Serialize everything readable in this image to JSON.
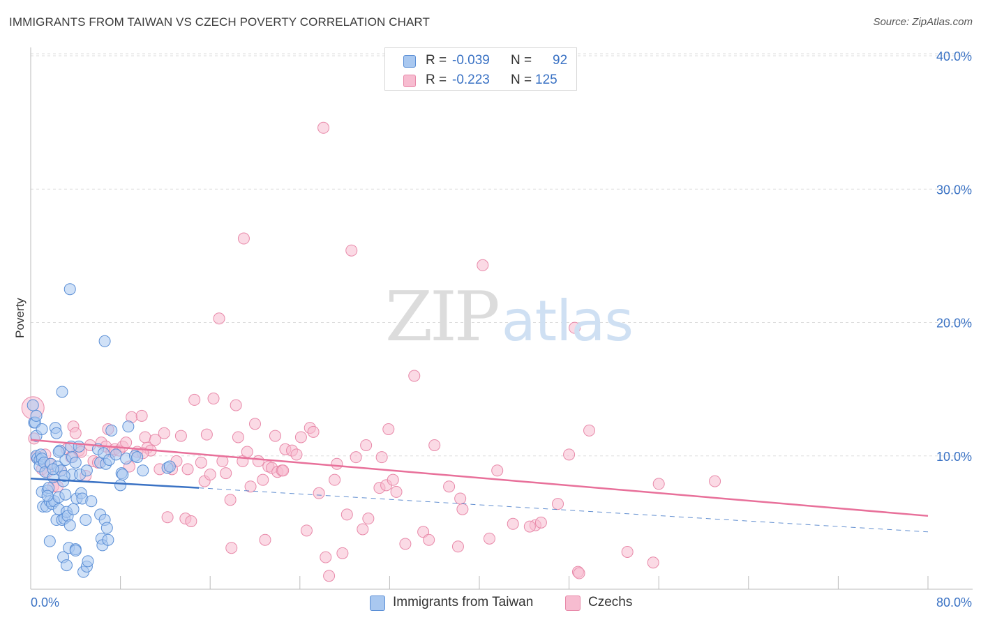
{
  "title": "IMMIGRANTS FROM TAIWAN VS CZECH POVERTY CORRELATION CHART",
  "source": "Source: ZipAtlas.com",
  "watermark": {
    "zip": "ZIP",
    "atlas": "atlas"
  },
  "legend_top": {
    "rows": [
      {
        "r_label": "R =",
        "r_value": "-0.039",
        "n_label": "N =",
        "n_value": "92"
      },
      {
        "r_label": "R =",
        "r_value": "-0.223",
        "n_label": "N =",
        "n_value": "125"
      }
    ]
  },
  "legend_bottom": [
    {
      "label": "Immigrants from Taiwan"
    },
    {
      "label": "Czechs"
    }
  ],
  "colors": {
    "taiwan_fill": "#a9c8f0",
    "taiwan_stroke": "#5b8fd6",
    "taiwan_line": "#3a72c4",
    "czech_fill": "#f7bcd0",
    "czech_stroke": "#e889a9",
    "czech_line": "#e8709a",
    "axis_text": "#3a72c4",
    "grid": "#dddddd"
  },
  "chart_data": {
    "type": "scatter",
    "title": "IMMIGRANTS FROM TAIWAN VS CZECH POVERTY CORRELATION CHART",
    "xlabel": "",
    "ylabel": "Poverty",
    "xlim": [
      0,
      80
    ],
    "ylim": [
      0,
      40
    ],
    "x_tick_labels": [
      {
        "value": 0,
        "label": "0.0%"
      },
      {
        "value": 80,
        "label": "80.0%"
      }
    ],
    "y_tick_labels": [
      {
        "value": 10,
        "label": "10.0%"
      },
      {
        "value": 20,
        "label": "20.0%"
      },
      {
        "value": 30,
        "label": "30.0%"
      },
      {
        "value": 40,
        "label": "40.0%"
      }
    ],
    "x_minor_ticks": [
      8,
      16,
      24,
      32,
      40,
      48,
      56,
      64,
      72,
      80
    ],
    "grid": true,
    "legend_position": "top-center",
    "series": [
      {
        "name": "Immigrants from Taiwan",
        "r": -0.039,
        "n": 92,
        "trend": {
          "x0": 0,
          "y0": 8.3,
          "x1": 15,
          "y1": 7.6,
          "dashed_to_x": 80,
          "dashed_to_y": 4.3
        },
        "points": [
          [
            0.2,
            13.8
          ],
          [
            0.3,
            12.5
          ],
          [
            0.4,
            12.5
          ],
          [
            0.5,
            13.0
          ],
          [
            0.5,
            11.5
          ],
          [
            0.5,
            10.0
          ],
          [
            0.6,
            9.8
          ],
          [
            0.8,
            9.7
          ],
          [
            0.8,
            9.2
          ],
          [
            0.9,
            10.1
          ],
          [
            1.0,
            9.8
          ],
          [
            1.0,
            7.3
          ],
          [
            1.1,
            6.2
          ],
          [
            1.2,
            9.5
          ],
          [
            1.3,
            8.8
          ],
          [
            1.4,
            6.2
          ],
          [
            1.5,
            7.4
          ],
          [
            1.6,
            7.6
          ],
          [
            1.7,
            6.6
          ],
          [
            1.7,
            3.6
          ],
          [
            1.8,
            9.4
          ],
          [
            1.9,
            6.4
          ],
          [
            2.0,
            8.4
          ],
          [
            2.1,
            6.6
          ],
          [
            2.2,
            12.1
          ],
          [
            2.3,
            11.7
          ],
          [
            2.3,
            5.2
          ],
          [
            2.4,
            9.2
          ],
          [
            2.5,
            6.9
          ],
          [
            2.5,
            6.0
          ],
          [
            2.6,
            10.4
          ],
          [
            2.7,
            8.9
          ],
          [
            2.8,
            14.8
          ],
          [
            2.8,
            5.2
          ],
          [
            2.9,
            8.1
          ],
          [
            2.9,
            2.4
          ],
          [
            3.0,
            5.3
          ],
          [
            3.1,
            9.7
          ],
          [
            3.1,
            7.1
          ],
          [
            3.2,
            5.8
          ],
          [
            3.2,
            1.8
          ],
          [
            3.3,
            5.5
          ],
          [
            3.4,
            3.1
          ],
          [
            3.5,
            22.5
          ],
          [
            3.5,
            4.8
          ],
          [
            3.6,
            10.7
          ],
          [
            3.7,
            9.9
          ],
          [
            3.7,
            8.6
          ],
          [
            3.8,
            6.0
          ],
          [
            4.0,
            3.0
          ],
          [
            4.0,
            2.9
          ],
          [
            4.1,
            6.8
          ],
          [
            4.3,
            10.7
          ],
          [
            4.4,
            8.6
          ],
          [
            4.5,
            7.2
          ],
          [
            4.6,
            6.8
          ],
          [
            4.7,
            1.3
          ],
          [
            4.9,
            5.2
          ],
          [
            5.0,
            1.7
          ],
          [
            5.1,
            2.1
          ],
          [
            5.4,
            6.6
          ],
          [
            6.0,
            10.5
          ],
          [
            6.2,
            9.5
          ],
          [
            6.2,
            5.6
          ],
          [
            6.3,
            3.8
          ],
          [
            6.4,
            3.3
          ],
          [
            6.5,
            10.2
          ],
          [
            6.6,
            18.6
          ],
          [
            6.6,
            5.2
          ],
          [
            6.7,
            9.4
          ],
          [
            6.8,
            4.6
          ],
          [
            6.9,
            3.7
          ],
          [
            7.0,
            9.7
          ],
          [
            7.2,
            11.9
          ],
          [
            7.6,
            10.1
          ],
          [
            8.0,
            7.8
          ],
          [
            8.1,
            8.7
          ],
          [
            8.2,
            8.6
          ],
          [
            8.5,
            9.8
          ],
          [
            8.7,
            12.2
          ],
          [
            9.3,
            10.0
          ],
          [
            9.5,
            9.9
          ],
          [
            10.0,
            8.9
          ],
          [
            12.2,
            9.1
          ],
          [
            12.4,
            9.2
          ],
          [
            1.0,
            12.0
          ],
          [
            2.0,
            9.0
          ],
          [
            3.0,
            8.5
          ],
          [
            4.0,
            9.5
          ],
          [
            5.0,
            8.9
          ],
          [
            2.5,
            10.3
          ],
          [
            1.5,
            7.0
          ]
        ]
      },
      {
        "name": "Czechs",
        "r": -0.223,
        "n": 125,
        "trend": {
          "x0": 0,
          "y0": 11.2,
          "x1": 80,
          "y1": 5.5
        },
        "points": [
          [
            0.2,
            13.6
          ],
          [
            0.3,
            11.3
          ],
          [
            0.5,
            9.9
          ],
          [
            1.0,
            9.0
          ],
          [
            1.3,
            10.1
          ],
          [
            1.5,
            8.8
          ],
          [
            1.7,
            9.4
          ],
          [
            2.0,
            7.7
          ],
          [
            2.4,
            7.7
          ],
          [
            2.7,
            8.9
          ],
          [
            3.2,
            10.5
          ],
          [
            3.6,
            9.9
          ],
          [
            3.8,
            12.2
          ],
          [
            4.0,
            11.7
          ],
          [
            4.3,
            10.4
          ],
          [
            4.5,
            10.3
          ],
          [
            4.9,
            8.5
          ],
          [
            5.3,
            10.8
          ],
          [
            5.6,
            9.6
          ],
          [
            6.0,
            9.5
          ],
          [
            6.3,
            11.0
          ],
          [
            6.7,
            10.7
          ],
          [
            6.9,
            12.0
          ],
          [
            7.2,
            10.3
          ],
          [
            7.5,
            10.5
          ],
          [
            7.9,
            10.4
          ],
          [
            8.2,
            10.7
          ],
          [
            8.5,
            11.0
          ],
          [
            8.8,
            9.2
          ],
          [
            9.0,
            12.9
          ],
          [
            9.5,
            10.3
          ],
          [
            9.9,
            13.0
          ],
          [
            10.2,
            11.4
          ],
          [
            10.4,
            10.6
          ],
          [
            10.7,
            10.4
          ],
          [
            11.1,
            11.2
          ],
          [
            11.5,
            9.0
          ],
          [
            11.9,
            11.7
          ],
          [
            12.2,
            5.4
          ],
          [
            12.6,
            9.0
          ],
          [
            13.0,
            9.6
          ],
          [
            13.4,
            11.5
          ],
          [
            13.8,
            5.3
          ],
          [
            14.0,
            9.0
          ],
          [
            14.3,
            5.1
          ],
          [
            14.6,
            14.2
          ],
          [
            15.2,
            9.5
          ],
          [
            15.5,
            8.1
          ],
          [
            15.7,
            11.6
          ],
          [
            16.0,
            8.6
          ],
          [
            16.3,
            14.3
          ],
          [
            16.8,
            20.3
          ],
          [
            17.1,
            9.6
          ],
          [
            17.4,
            8.7
          ],
          [
            17.8,
            6.7
          ],
          [
            17.9,
            3.1
          ],
          [
            18.3,
            13.8
          ],
          [
            18.5,
            11.4
          ],
          [
            18.9,
            9.6
          ],
          [
            19.0,
            26.3
          ],
          [
            19.3,
            10.3
          ],
          [
            19.6,
            7.7
          ],
          [
            20.0,
            12.4
          ],
          [
            20.3,
            9.6
          ],
          [
            20.7,
            8.2
          ],
          [
            20.9,
            3.7
          ],
          [
            21.2,
            9.2
          ],
          [
            21.5,
            9.1
          ],
          [
            21.8,
            11.5
          ],
          [
            22.0,
            8.8
          ],
          [
            22.4,
            8.9
          ],
          [
            22.7,
            10.5
          ],
          [
            23.3,
            10.4
          ],
          [
            23.7,
            10.1
          ],
          [
            24.1,
            11.4
          ],
          [
            24.6,
            4.4
          ],
          [
            24.9,
            12.1
          ],
          [
            25.2,
            11.8
          ],
          [
            25.7,
            7.2
          ],
          [
            26.1,
            34.6
          ],
          [
            26.3,
            2.4
          ],
          [
            26.6,
            1.0
          ],
          [
            27.1,
            8.2
          ],
          [
            27.3,
            9.4
          ],
          [
            27.8,
            2.7
          ],
          [
            28.2,
            5.6
          ],
          [
            28.6,
            25.4
          ],
          [
            29.0,
            9.9
          ],
          [
            29.6,
            4.5
          ],
          [
            29.9,
            10.8
          ],
          [
            30.1,
            5.3
          ],
          [
            31.1,
            7.6
          ],
          [
            31.3,
            9.9
          ],
          [
            31.7,
            7.8
          ],
          [
            31.9,
            12.0
          ],
          [
            32.3,
            8.2
          ],
          [
            32.6,
            7.3
          ],
          [
            33.4,
            3.4
          ],
          [
            34.2,
            16.0
          ],
          [
            35.0,
            4.3
          ],
          [
            36.0,
            10.8
          ],
          [
            37.3,
            7.7
          ],
          [
            38.1,
            3.2
          ],
          [
            38.5,
            6.0
          ],
          [
            38.3,
            6.8
          ],
          [
            40.3,
            24.3
          ],
          [
            40.9,
            3.8
          ],
          [
            41.6,
            8.9
          ],
          [
            43.0,
            4.9
          ],
          [
            45.0,
            4.8
          ],
          [
            45.5,
            5.0
          ],
          [
            47.0,
            6.4
          ],
          [
            48.0,
            10.1
          ],
          [
            48.5,
            19.6
          ],
          [
            48.8,
            1.3
          ],
          [
            48.9,
            1.2
          ],
          [
            49.8,
            11.9
          ],
          [
            53.2,
            2.8
          ],
          [
            55.5,
            2.0
          ],
          [
            56.0,
            7.9
          ],
          [
            61.0,
            8.1
          ],
          [
            44.5,
            4.7
          ],
          [
            35.5,
            3.7
          ],
          [
            22.5,
            8.9
          ],
          [
            10.0,
            10.2
          ]
        ]
      }
    ]
  }
}
